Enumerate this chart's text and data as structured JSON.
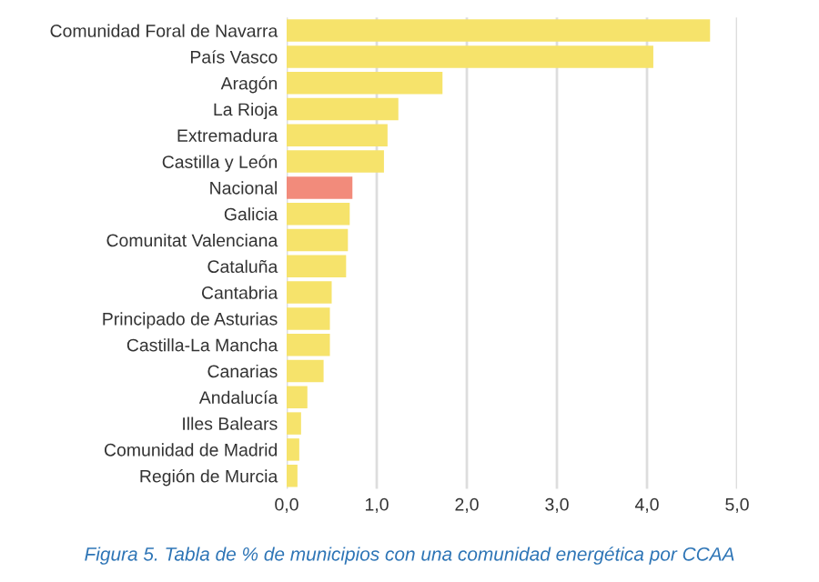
{
  "chart_data": {
    "type": "bar",
    "orientation": "horizontal",
    "categories": [
      "Comunidad Foral de Navarra",
      "País Vasco",
      "Aragón",
      "La Rioja",
      "Extremadura",
      "Castilla y León",
      "Nacional",
      "Galicia",
      "Comunitat Valenciana",
      "Cataluña",
      "Cantabria",
      "Principado de Asturias",
      "Castilla-La Mancha",
      "Canarias",
      "Andalucía",
      "Illes Balears",
      "Comunidad de Madrid",
      "Región de Murcia"
    ],
    "values": [
      4.7,
      4.07,
      1.73,
      1.24,
      1.12,
      1.08,
      0.73,
      0.7,
      0.68,
      0.66,
      0.5,
      0.48,
      0.48,
      0.41,
      0.23,
      0.16,
      0.14,
      0.12
    ],
    "colors": [
      "#f6e36b",
      "#f6e36b",
      "#f6e36b",
      "#f6e36b",
      "#f6e36b",
      "#f6e36b",
      "#f28b7b",
      "#f6e36b",
      "#f6e36b",
      "#f6e36b",
      "#f6e36b",
      "#f6e36b",
      "#f6e36b",
      "#f6e36b",
      "#f6e36b",
      "#f6e36b",
      "#f6e36b",
      "#f6e36b"
    ],
    "xlim": [
      0,
      5
    ],
    "xticks": [
      {
        "value": 0,
        "label": "0,0"
      },
      {
        "value": 1,
        "label": "1,0"
      },
      {
        "value": 2,
        "label": "2,0"
      },
      {
        "value": 3,
        "label": "3,0"
      },
      {
        "value": 4,
        "label": "4,0"
      },
      {
        "value": 5,
        "label": "5,0"
      }
    ],
    "grid": "x",
    "annotations": [
      "Figura 5. Tabla de % de municipios con una comunidad energética por CCAA"
    ]
  }
}
